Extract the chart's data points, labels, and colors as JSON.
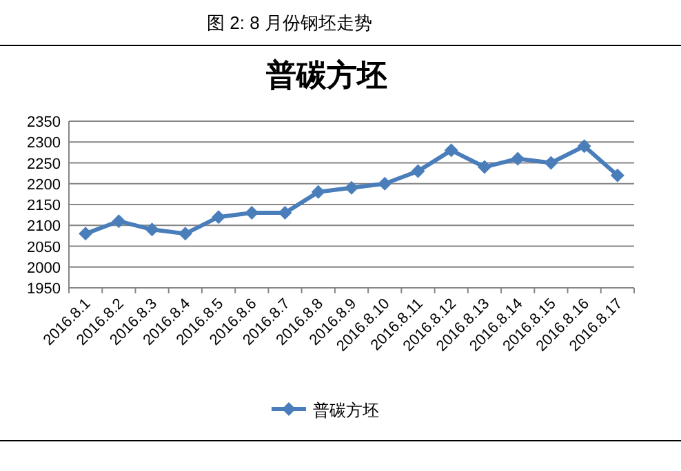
{
  "chart_data": {
    "type": "line",
    "title": "普碳方坯",
    "annotations": [
      "图 2: 8 月份钢坯走势"
    ],
    "categories": [
      "2016.8.1",
      "2016.8.2",
      "2016.8.3",
      "2016.8.4",
      "2016.8.5",
      "2016.8.6",
      "2016.8.7",
      "2016.8.8",
      "2016.8.9",
      "2016.8.10",
      "2016.8.11",
      "2016.8.12",
      "2016.8.13",
      "2016.8.14",
      "2016.8.15",
      "2016.8.16",
      "2016.8.17"
    ],
    "series": [
      {
        "name": "普碳方坯",
        "color": "#4a7ebb",
        "values": [
          2080,
          2110,
          2090,
          2080,
          2120,
          2130,
          2130,
          2180,
          2190,
          2200,
          2230,
          2280,
          2240,
          2260,
          2250,
          2290,
          2220
        ]
      }
    ],
    "ylim": [
      1950,
      2350
    ],
    "yticks": [
      1950,
      2000,
      2050,
      2100,
      2150,
      2200,
      2250,
      2300,
      2350
    ],
    "grid": "y",
    "legend": "bottom",
    "marker": "diamond",
    "line_style": "solid"
  }
}
